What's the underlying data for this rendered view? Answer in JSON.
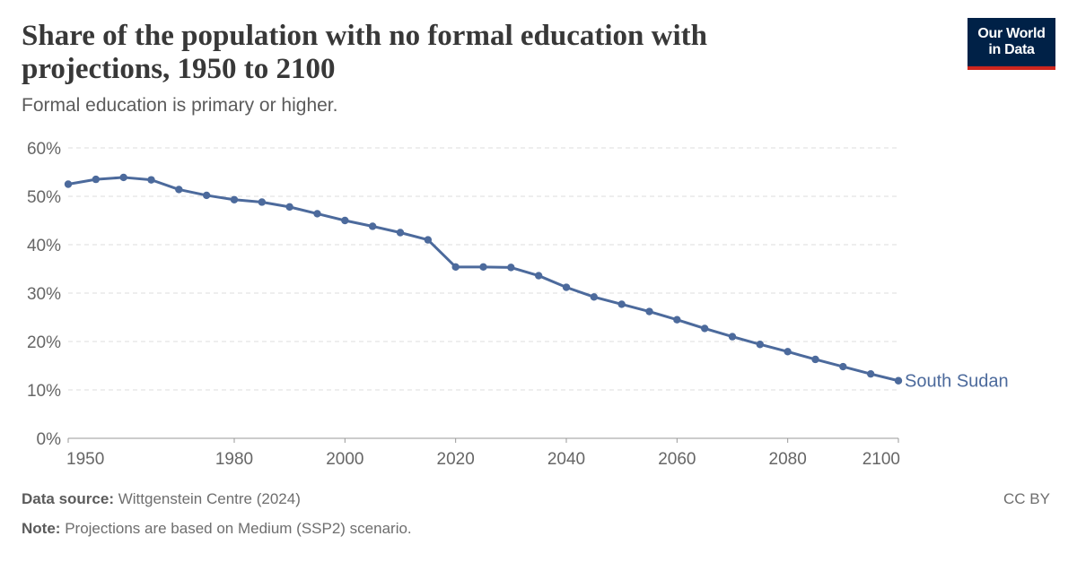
{
  "header": {
    "title": "Share of the population with no formal education with projections, 1950 to 2100",
    "subtitle": "Formal education is primary or higher."
  },
  "logo": {
    "line1": "Our World",
    "line2": "in Data",
    "bg": "#002147",
    "accent": "#ce261e"
  },
  "footer": {
    "source_label": "Data source:",
    "source_text": "Wittgenstein Centre (2024)",
    "note_label": "Note:",
    "note_text": "Projections are based on Medium (SSP2) scenario.",
    "license": "CC BY"
  },
  "chart_data": {
    "type": "line",
    "title": "Share of the population with no formal education with projections, 1950 to 2100",
    "subtitle": "Formal education is primary or higher.",
    "ylim": [
      0,
      60
    ],
    "xlim": [
      1950,
      2100
    ],
    "y_ticks": [
      "0%",
      "10%",
      "20%",
      "30%",
      "40%",
      "50%",
      "60%"
    ],
    "y_tick_values": [
      0,
      10,
      20,
      30,
      40,
      50,
      60
    ],
    "x_ticks": [
      "1950",
      "1980",
      "2000",
      "2020",
      "2040",
      "2060",
      "2080",
      "2100"
    ],
    "x_tick_values": [
      1950,
      1980,
      2000,
      2020,
      2040,
      2060,
      2080,
      2100
    ],
    "grid": "horizontal dashed",
    "series": [
      {
        "name": "South Sudan",
        "color": "#4c6a9c",
        "x": [
          1950,
          1955,
          1960,
          1965,
          1970,
          1975,
          1980,
          1985,
          1990,
          1995,
          2000,
          2005,
          2010,
          2015,
          2020,
          2025,
          2030,
          2035,
          2040,
          2045,
          2050,
          2055,
          2060,
          2065,
          2070,
          2075,
          2080,
          2085,
          2090,
          2095,
          2100
        ],
        "values": [
          52.5,
          53.5,
          53.9,
          53.4,
          51.4,
          50.2,
          49.3,
          48.8,
          47.8,
          46.4,
          45.0,
          43.8,
          42.5,
          41.0,
          35.4,
          35.4,
          35.3,
          33.6,
          31.2,
          29.2,
          27.7,
          26.2,
          24.5,
          22.7,
          21.0,
          19.4,
          17.9,
          16.3,
          14.8,
          13.3,
          11.9
        ]
      }
    ]
  }
}
